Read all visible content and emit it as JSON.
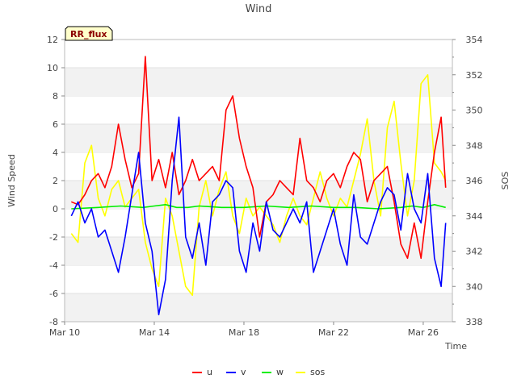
{
  "chart_data": {
    "type": "line",
    "title": "Wind",
    "xlabel": "Time",
    "ylabel": "Wind Speed",
    "y2label": "SOS",
    "badge": "RR_flux",
    "grid": "horizontal bands",
    "legend_position": "bottom-center",
    "x_range_days": [
      0,
      17.3
    ],
    "x_ticks": [
      {
        "day": 0,
        "label": "Mar 10"
      },
      {
        "day": 4,
        "label": "Mar 14"
      },
      {
        "day": 8,
        "label": "Mar 18"
      },
      {
        "day": 12,
        "label": "Mar 22"
      },
      {
        "day": 16,
        "label": "Mar 26"
      }
    ],
    "ylim": [
      -8,
      12
    ],
    "y_ticks": [
      -8,
      -6,
      -4,
      -2,
      0,
      2,
      4,
      6,
      8,
      10,
      12
    ],
    "y2lim": [
      338,
      354
    ],
    "y2_ticks": [
      338,
      340,
      342,
      344,
      346,
      348,
      350,
      352,
      354
    ],
    "series": [
      {
        "name": "u",
        "color": "#ff0000",
        "axis": "left",
        "x": [
          0.3,
          0.6,
          0.9,
          1.2,
          1.5,
          1.8,
          2.1,
          2.4,
          2.7,
          3.0,
          3.3,
          3.6,
          3.9,
          4.2,
          4.5,
          4.8,
          5.1,
          5.4,
          5.7,
          6.0,
          6.3,
          6.6,
          6.9,
          7.2,
          7.5,
          7.8,
          8.1,
          8.4,
          8.7,
          9.0,
          9.3,
          9.6,
          9.9,
          10.2,
          10.5,
          10.8,
          11.1,
          11.4,
          11.7,
          12.0,
          12.3,
          12.6,
          12.9,
          13.2,
          13.5,
          13.8,
          14.1,
          14.4,
          14.7,
          15.0,
          15.3,
          15.6,
          15.9,
          16.2,
          16.5,
          16.8,
          17.0
        ],
        "values": [
          0.5,
          0.3,
          1.0,
          2.0,
          2.5,
          1.5,
          3.0,
          6.0,
          3.5,
          1.5,
          2.5,
          10.8,
          2.0,
          3.5,
          1.5,
          4.0,
          1.0,
          2.0,
          3.5,
          2.0,
          2.5,
          3.0,
          2.0,
          7.0,
          8.0,
          5.0,
          3.0,
          1.5,
          -2.0,
          0.5,
          1.0,
          2.0,
          1.5,
          1.0,
          5.0,
          2.0,
          1.5,
          0.5,
          2.0,
          2.5,
          1.5,
          3.0,
          4.0,
          3.5,
          0.5,
          2.0,
          2.5,
          3.0,
          0.5,
          -2.5,
          -3.5,
          -1.0,
          -3.5,
          0.5,
          4.0,
          6.5,
          1.5
        ]
      },
      {
        "name": "v",
        "color": "#0000ff",
        "axis": "left",
        "x": [
          0.3,
          0.6,
          0.9,
          1.2,
          1.5,
          1.8,
          2.1,
          2.4,
          2.7,
          3.0,
          3.3,
          3.6,
          3.9,
          4.2,
          4.5,
          4.8,
          5.1,
          5.4,
          5.7,
          6.0,
          6.3,
          6.6,
          6.9,
          7.2,
          7.5,
          7.8,
          8.1,
          8.4,
          8.7,
          9.0,
          9.3,
          9.6,
          9.9,
          10.2,
          10.5,
          10.8,
          11.1,
          11.4,
          11.7,
          12.0,
          12.3,
          12.6,
          12.9,
          13.2,
          13.5,
          13.8,
          14.1,
          14.4,
          14.7,
          15.0,
          15.3,
          15.6,
          15.9,
          16.2,
          16.5,
          16.8,
          17.0
        ],
        "values": [
          -0.5,
          0.5,
          -1.0,
          0.0,
          -2.0,
          -1.5,
          -3.0,
          -4.5,
          -2.0,
          1.0,
          4.0,
          -1.0,
          -3.0,
          -7.5,
          -5.0,
          2.0,
          6.5,
          -2.0,
          -3.5,
          -1.0,
          -4.0,
          0.5,
          1.0,
          2.0,
          1.5,
          -3.0,
          -4.5,
          -1.0,
          -3.0,
          0.5,
          -1.5,
          -2.0,
          -1.0,
          0.0,
          -1.0,
          0.5,
          -4.5,
          -3.0,
          -1.5,
          0.0,
          -2.5,
          -4.0,
          1.0,
          -2.0,
          -2.5,
          -1.0,
          0.5,
          1.5,
          1.0,
          -1.5,
          2.5,
          0.0,
          -1.0,
          2.5,
          -3.5,
          -5.5,
          -1.0
        ]
      },
      {
        "name": "w",
        "color": "#00ee00",
        "axis": "left",
        "x": [
          0.3,
          1.5,
          2.5,
          3.5,
          4.0,
          4.5,
          5.0,
          5.5,
          6.0,
          7.0,
          8.0,
          9.0,
          10.0,
          11.0,
          12.0,
          13.0,
          14.0,
          15.0,
          15.5,
          16.0,
          16.5,
          17.0
        ],
        "values": [
          0.0,
          0.1,
          0.2,
          0.1,
          0.2,
          0.3,
          0.1,
          0.1,
          0.2,
          0.1,
          0.1,
          0.2,
          0.1,
          0.2,
          0.1,
          0.1,
          0.0,
          0.1,
          0.2,
          0.1,
          0.3,
          0.1
        ]
      },
      {
        "name": "sos",
        "color": "#ffff00",
        "axis": "right",
        "x": [
          0.3,
          0.6,
          0.9,
          1.2,
          1.5,
          1.8,
          2.1,
          2.4,
          2.7,
          3.0,
          3.3,
          3.6,
          3.9,
          4.2,
          4.5,
          4.8,
          5.1,
          5.4,
          5.7,
          6.0,
          6.3,
          6.6,
          6.9,
          7.2,
          7.5,
          7.8,
          8.1,
          8.4,
          8.7,
          9.0,
          9.3,
          9.6,
          9.9,
          10.2,
          10.5,
          10.8,
          11.1,
          11.4,
          11.7,
          12.0,
          12.3,
          12.6,
          12.9,
          13.2,
          13.5,
          13.8,
          14.1,
          14.4,
          14.7,
          15.0,
          15.3,
          15.6,
          15.9,
          16.2,
          16.5,
          16.8,
          17.0
        ],
        "values": [
          343.0,
          342.5,
          347.0,
          348.0,
          345.0,
          344.0,
          345.5,
          346.0,
          344.5,
          345.0,
          345.5,
          342.5,
          341.0,
          340.0,
          345.0,
          344.0,
          342.0,
          340.0,
          339.5,
          344.5,
          346.0,
          344.0,
          345.5,
          346.5,
          344.0,
          343.0,
          345.0,
          344.0,
          344.5,
          344.0,
          343.5,
          342.5,
          344.0,
          345.0,
          344.0,
          343.5,
          345.0,
          346.5,
          345.0,
          344.0,
          345.0,
          344.5,
          346.0,
          347.5,
          349.5,
          346.0,
          344.0,
          349.0,
          350.5,
          347.0,
          344.0,
          346.0,
          351.5,
          352.0,
          347.0,
          346.5,
          346.0
        ]
      }
    ]
  }
}
